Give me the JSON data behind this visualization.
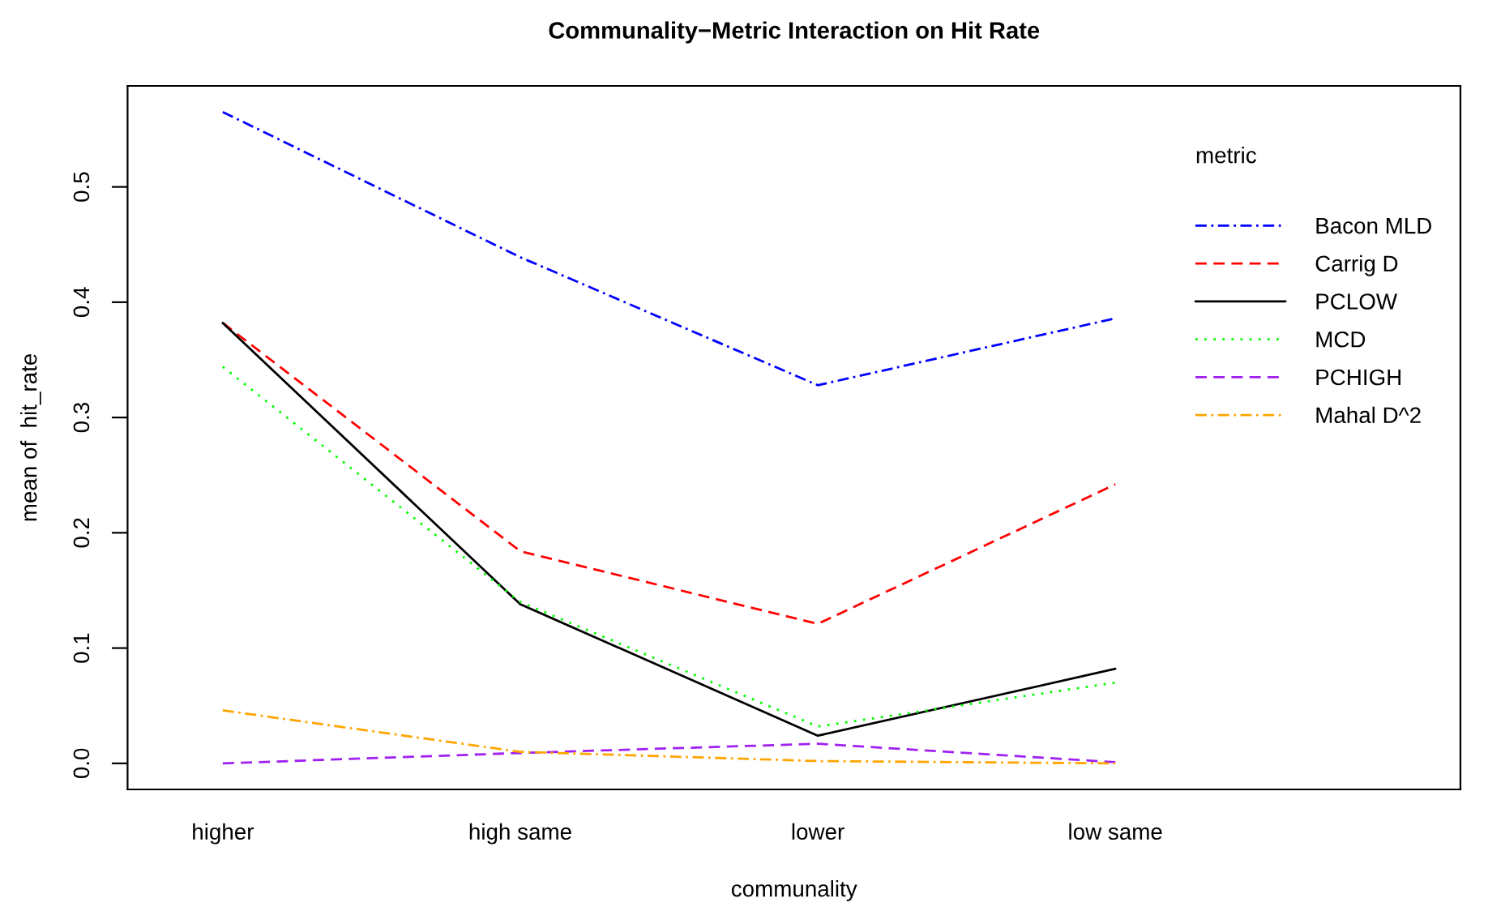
{
  "chart_data": {
    "type": "line",
    "title": "Communality−Metric Interaction on Hit Rate",
    "xlabel": "communality",
    "ylabel": "mean of  hit_rate",
    "legend_title": "metric",
    "legend": "top right",
    "categories": [
      "higher",
      "high same",
      "lower",
      "low same"
    ],
    "ylim": [
      -0.0226,
      0.5876
    ],
    "yticks": [
      {
        "value": 0,
        "label": "0.0"
      },
      0.1,
      0.2,
      0.3,
      0.4,
      0.5
    ],
    "series": [
      {
        "name": "Bacon MLD",
        "color": "#0000ff",
        "line_style": "dashdot",
        "values": [
          0.565,
          0.439,
          0.328,
          0.386
        ]
      },
      {
        "name": "Carrig D",
        "color": "#ff0000",
        "line_style": "dashed",
        "values": [
          0.382,
          0.184,
          0.121,
          0.242
        ]
      },
      {
        "name": "PCLOW",
        "color": "#000000",
        "line_style": "solid",
        "values": [
          0.382,
          0.138,
          0.024,
          0.082
        ]
      },
      {
        "name": "MCD",
        "color": "#00ff00",
        "line_style": "dotted",
        "values": [
          0.344,
          0.14,
          0.032,
          0.07
        ]
      },
      {
        "name": "PCHIGH",
        "color": "#a020f0",
        "line_style": "dashed",
        "values": [
          0.0,
          0.009,
          0.017,
          0.001
        ]
      },
      {
        "name": "Mahal D^2",
        "color": "#ffa500",
        "line_style": "dashdot",
        "values": [
          0.046,
          0.01,
          0.002,
          0.0
        ]
      }
    ]
  }
}
